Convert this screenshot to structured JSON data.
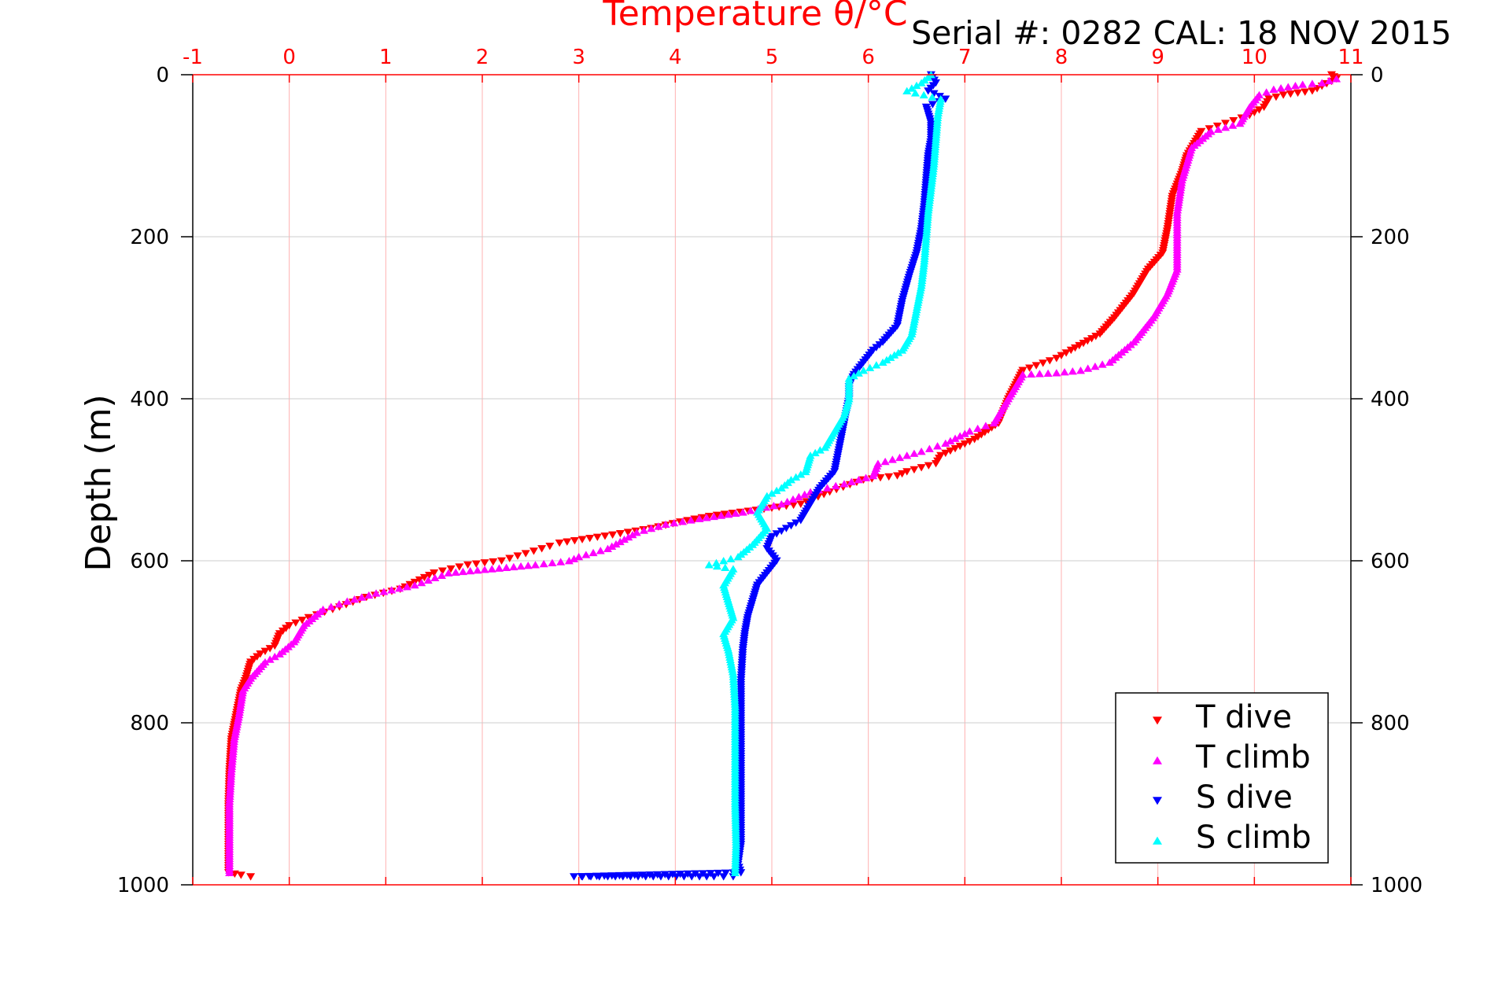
{
  "chart_data": {
    "type": "scatter",
    "title": "Temperature θ/°C",
    "header": "Serial #: 0282  CAL: 18 NOV 2015",
    "ylabel": "Depth (m)",
    "xlim": [
      -1,
      11
    ],
    "ylim": [
      0,
      1000
    ],
    "y_reversed": true,
    "grid": true,
    "x_ticks": [
      -1,
      0,
      1,
      2,
      3,
      4,
      5,
      6,
      7,
      8,
      9,
      10,
      11
    ],
    "y_ticks": [
      0,
      200,
      400,
      600,
      800,
      1000
    ],
    "legend_position": "bottom-right",
    "colors": {
      "axis_top": "#ff0000",
      "grid": "#cccccc",
      "grid_vertical": "#ffb0b0",
      "t_dive": "#ff0000",
      "t_climb": "#ff00ff",
      "s_dive": "#0000ff",
      "s_climb": "#00ffff"
    },
    "series": [
      {
        "name": "T dive",
        "marker": "triangle-down",
        "color": "#ff0000",
        "points": [
          [
            10.8,
            0
          ],
          [
            10.85,
            5
          ],
          [
            10.6,
            20
          ],
          [
            10.3,
            25
          ],
          [
            10.15,
            30
          ],
          [
            10.1,
            40
          ],
          [
            9.95,
            50
          ],
          [
            9.7,
            60
          ],
          [
            9.45,
            70
          ],
          [
            9.3,
            100
          ],
          [
            9.25,
            120
          ],
          [
            9.15,
            150
          ],
          [
            9.1,
            190
          ],
          [
            9.05,
            220
          ],
          [
            8.9,
            240
          ],
          [
            8.75,
            270
          ],
          [
            8.55,
            300
          ],
          [
            8.4,
            320
          ],
          [
            8.1,
            340
          ],
          [
            7.95,
            350
          ],
          [
            7.6,
            365
          ],
          [
            7.45,
            400
          ],
          [
            7.35,
            430
          ],
          [
            7.1,
            450
          ],
          [
            6.75,
            470
          ],
          [
            6.7,
            480
          ],
          [
            6.4,
            490
          ],
          [
            6.3,
            495
          ],
          [
            5.95,
            500
          ],
          [
            5.6,
            515
          ],
          [
            5.3,
            530
          ],
          [
            5.0,
            535
          ],
          [
            4.35,
            545
          ],
          [
            4.05,
            552
          ],
          [
            3.75,
            560
          ],
          [
            3.35,
            568
          ],
          [
            2.8,
            578
          ],
          [
            2.7,
            582
          ],
          [
            2.2,
            600
          ],
          [
            1.85,
            605
          ],
          [
            1.5,
            615
          ],
          [
            1.15,
            635
          ],
          [
            0.8,
            645
          ],
          [
            0.45,
            660
          ],
          [
            0.2,
            670
          ],
          [
            0.0,
            680
          ],
          [
            -0.1,
            690
          ],
          [
            -0.15,
            705
          ],
          [
            -0.3,
            715
          ],
          [
            -0.4,
            725
          ],
          [
            -0.45,
            745
          ],
          [
            -0.5,
            760
          ],
          [
            -0.55,
            790
          ],
          [
            -0.6,
            820
          ],
          [
            -0.62,
            860
          ],
          [
            -0.63,
            900
          ],
          [
            -0.63,
            950
          ],
          [
            -0.63,
            985
          ],
          [
            -0.5,
            988
          ],
          [
            -0.4,
            990
          ]
        ]
      },
      {
        "name": "T climb",
        "marker": "triangle-up",
        "color": "#ff00ff",
        "points": [
          [
            10.85,
            5
          ],
          [
            10.7,
            10
          ],
          [
            10.5,
            12
          ],
          [
            10.2,
            18
          ],
          [
            10.05,
            25
          ],
          [
            9.95,
            40
          ],
          [
            9.85,
            60
          ],
          [
            9.55,
            70
          ],
          [
            9.35,
            90
          ],
          [
            9.25,
            130
          ],
          [
            9.2,
            170
          ],
          [
            9.2,
            210
          ],
          [
            9.2,
            240
          ],
          [
            9.1,
            270
          ],
          [
            8.95,
            300
          ],
          [
            8.75,
            330
          ],
          [
            8.5,
            355
          ],
          [
            8.2,
            365
          ],
          [
            7.95,
            368
          ],
          [
            7.6,
            370
          ],
          [
            7.45,
            400
          ],
          [
            7.3,
            430
          ],
          [
            7.05,
            440
          ],
          [
            6.8,
            455
          ],
          [
            6.55,
            465
          ],
          [
            6.4,
            470
          ],
          [
            6.1,
            480
          ],
          [
            6.05,
            495
          ],
          [
            5.75,
            505
          ],
          [
            5.4,
            515
          ],
          [
            5.1,
            530
          ],
          [
            4.7,
            540
          ],
          [
            4.25,
            548
          ],
          [
            3.9,
            555
          ],
          [
            3.6,
            565
          ],
          [
            3.3,
            585
          ],
          [
            3.0,
            595
          ],
          [
            2.9,
            600
          ],
          [
            2.55,
            605
          ],
          [
            2.1,
            610
          ],
          [
            1.65,
            615
          ],
          [
            1.3,
            630
          ],
          [
            0.9,
            640
          ],
          [
            0.6,
            650
          ],
          [
            0.35,
            660
          ],
          [
            0.15,
            680
          ],
          [
            0.05,
            700
          ],
          [
            -0.1,
            715
          ],
          [
            -0.25,
            725
          ],
          [
            -0.4,
            745
          ],
          [
            -0.48,
            760
          ],
          [
            -0.52,
            790
          ],
          [
            -0.57,
            820
          ],
          [
            -0.6,
            860
          ],
          [
            -0.62,
            900
          ],
          [
            -0.62,
            950
          ],
          [
            -0.62,
            985
          ]
        ]
      },
      {
        "name": "S dive",
        "marker": "triangle-down",
        "color": "#0000ff",
        "points": [
          [
            6.65,
            0
          ],
          [
            6.7,
            10
          ],
          [
            6.62,
            20
          ],
          [
            6.8,
            30
          ],
          [
            6.6,
            40
          ],
          [
            6.65,
            60
          ],
          [
            6.65,
            80
          ],
          [
            6.62,
            100
          ],
          [
            6.6,
            130
          ],
          [
            6.58,
            160
          ],
          [
            6.55,
            190
          ],
          [
            6.5,
            220
          ],
          [
            6.42,
            250
          ],
          [
            6.35,
            280
          ],
          [
            6.3,
            310
          ],
          [
            6.15,
            330
          ],
          [
            6.05,
            340
          ],
          [
            5.95,
            355
          ],
          [
            5.85,
            370
          ],
          [
            5.8,
            385
          ],
          [
            5.8,
            400
          ],
          [
            5.75,
            430
          ],
          [
            5.7,
            460
          ],
          [
            5.65,
            490
          ],
          [
            5.5,
            510
          ],
          [
            5.4,
            530
          ],
          [
            5.3,
            550
          ],
          [
            5.15,
            560
          ],
          [
            5.0,
            570
          ],
          [
            4.95,
            585
          ],
          [
            5.05,
            600
          ],
          [
            4.95,
            615
          ],
          [
            4.85,
            630
          ],
          [
            4.8,
            650
          ],
          [
            4.75,
            670
          ],
          [
            4.72,
            690
          ],
          [
            4.7,
            710
          ],
          [
            4.68,
            750
          ],
          [
            4.68,
            800
          ],
          [
            4.68,
            850
          ],
          [
            4.68,
            900
          ],
          [
            4.68,
            950
          ],
          [
            4.65,
            975
          ],
          [
            4.68,
            985
          ],
          [
            2.95,
            990
          ],
          [
            3.3,
            990
          ],
          [
            3.85,
            990
          ],
          [
            4.25,
            990
          ],
          [
            4.4,
            990
          ],
          [
            4.5,
            990
          ],
          [
            4.6,
            990
          ]
        ]
      },
      {
        "name": "S climb",
        "marker": "triangle-up",
        "color": "#00ffff",
        "points": [
          [
            6.65,
            0
          ],
          [
            6.55,
            10
          ],
          [
            6.4,
            20
          ],
          [
            6.75,
            30
          ],
          [
            6.72,
            50
          ],
          [
            6.7,
            80
          ],
          [
            6.68,
            110
          ],
          [
            6.65,
            140
          ],
          [
            6.62,
            170
          ],
          [
            6.6,
            200
          ],
          [
            6.58,
            230
          ],
          [
            6.55,
            260
          ],
          [
            6.5,
            290
          ],
          [
            6.45,
            320
          ],
          [
            6.35,
            340
          ],
          [
            6.15,
            355
          ],
          [
            5.95,
            365
          ],
          [
            5.8,
            375
          ],
          [
            5.8,
            400
          ],
          [
            5.75,
            420
          ],
          [
            5.65,
            440
          ],
          [
            5.55,
            460
          ],
          [
            5.4,
            470
          ],
          [
            5.35,
            490
          ],
          [
            5.2,
            500
          ],
          [
            5.1,
            510
          ],
          [
            4.95,
            520
          ],
          [
            4.85,
            540
          ],
          [
            4.95,
            560
          ],
          [
            4.8,
            580
          ],
          [
            4.65,
            595
          ],
          [
            4.35,
            605
          ],
          [
            4.6,
            610
          ],
          [
            4.5,
            630
          ],
          [
            4.55,
            650
          ],
          [
            4.6,
            670
          ],
          [
            4.5,
            690
          ],
          [
            4.55,
            710
          ],
          [
            4.6,
            740
          ],
          [
            4.62,
            780
          ],
          [
            4.62,
            820
          ],
          [
            4.62,
            860
          ],
          [
            4.62,
            900
          ],
          [
            4.63,
            950
          ],
          [
            4.62,
            985
          ]
        ]
      }
    ]
  },
  "legend": {
    "items": [
      {
        "label": "T dive",
        "marker": "triangle-down",
        "color": "#ff0000"
      },
      {
        "label": "T climb",
        "marker": "triangle-up",
        "color": "#ff00ff"
      },
      {
        "label": "S dive",
        "marker": "triangle-down",
        "color": "#0000ff"
      },
      {
        "label": "S climb",
        "marker": "triangle-up",
        "color": "#00ffff"
      }
    ]
  }
}
